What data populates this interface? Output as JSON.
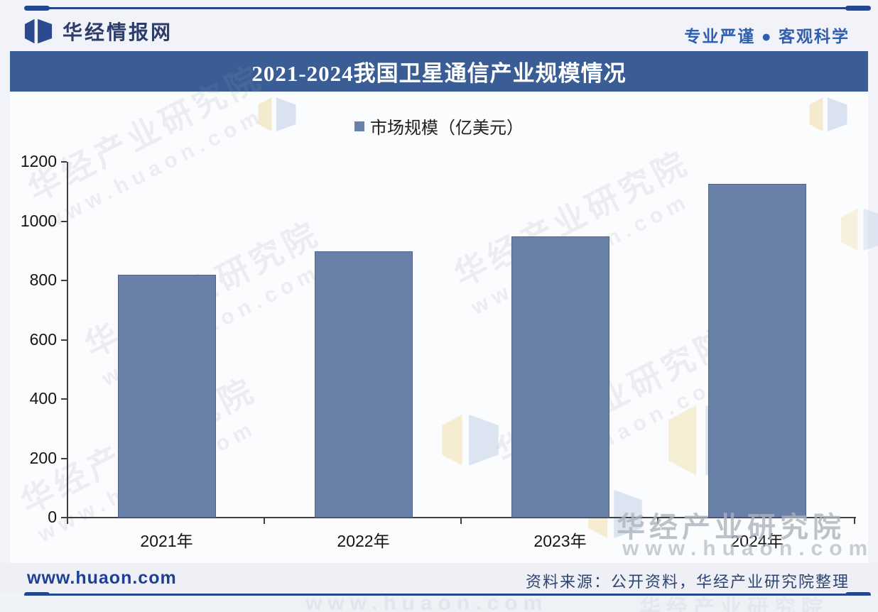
{
  "header": {
    "brand": "华经情报网",
    "slogan": "专业严谨 ● 客观科学"
  },
  "title": "2021-2024我国卫星通信产业规模情况",
  "legend": {
    "label": "市场规模（亿美元）"
  },
  "chart_data": {
    "type": "bar",
    "title": "2021-2024我国卫星通信产业规模情况",
    "categories": [
      "2021年",
      "2022年",
      "2023年",
      "2024年"
    ],
    "series": [
      {
        "name": "市场规模（亿美元）",
        "values": [
          820,
          898,
          948,
          1125
        ]
      }
    ],
    "ylim": [
      0,
      1200
    ],
    "yticks": [
      0,
      200,
      400,
      600,
      800,
      1000,
      1200
    ],
    "grid": false,
    "legend_position": "top-center",
    "bar_color": "#6980a8"
  },
  "footer": {
    "website": "www.huaon.com",
    "source": "资料来源：公开资料，华经产业研究院整理"
  },
  "watermark": {
    "line1": "华经产业研究院",
    "line2": "www.huaon.com"
  },
  "colors": {
    "accent_navy": "#24468e",
    "title_bar_bg": "#3b5d96",
    "title_text": "#ffffff",
    "bar_fill": "#6980a8",
    "slogan_blue": "#2f5fae",
    "page_bg": "#f1f3f8"
  }
}
